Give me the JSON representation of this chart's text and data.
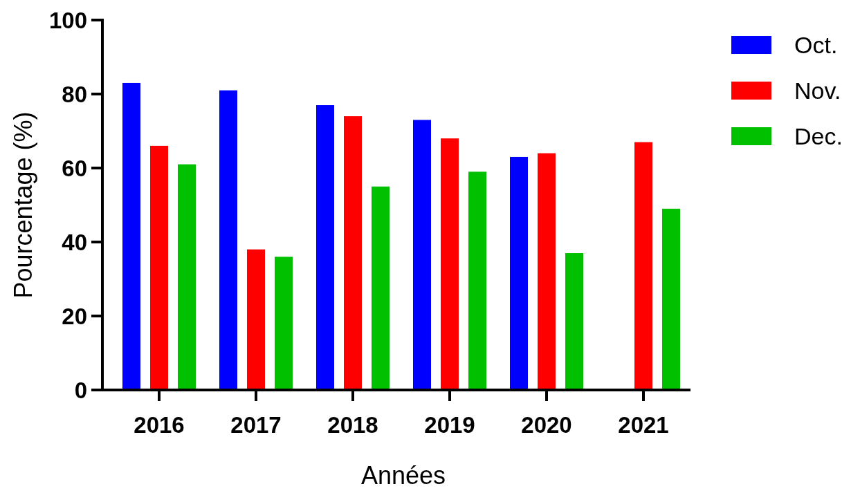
{
  "chart_data": {
    "type": "bar",
    "xlabel": "Années",
    "ylabel": "Pourcentage (%)",
    "categories": [
      "2016",
      "2017",
      "2018",
      "2019",
      "2020",
      "2021"
    ],
    "series": [
      {
        "name": "Oct.",
        "color": "#0000ff",
        "values": [
          83,
          81,
          77,
          73,
          63,
          null
        ]
      },
      {
        "name": "Nov.",
        "color": "#ff0000",
        "values": [
          66,
          38,
          74,
          68,
          64,
          67
        ]
      },
      {
        "name": "Dec.",
        "color": "#00c000",
        "values": [
          61,
          36,
          55,
          59,
          37,
          49
        ]
      }
    ],
    "ylim": [
      0,
      100
    ],
    "yticks": [
      0,
      20,
      40,
      60,
      80,
      100
    ],
    "grid": false,
    "legend": "top right"
  }
}
